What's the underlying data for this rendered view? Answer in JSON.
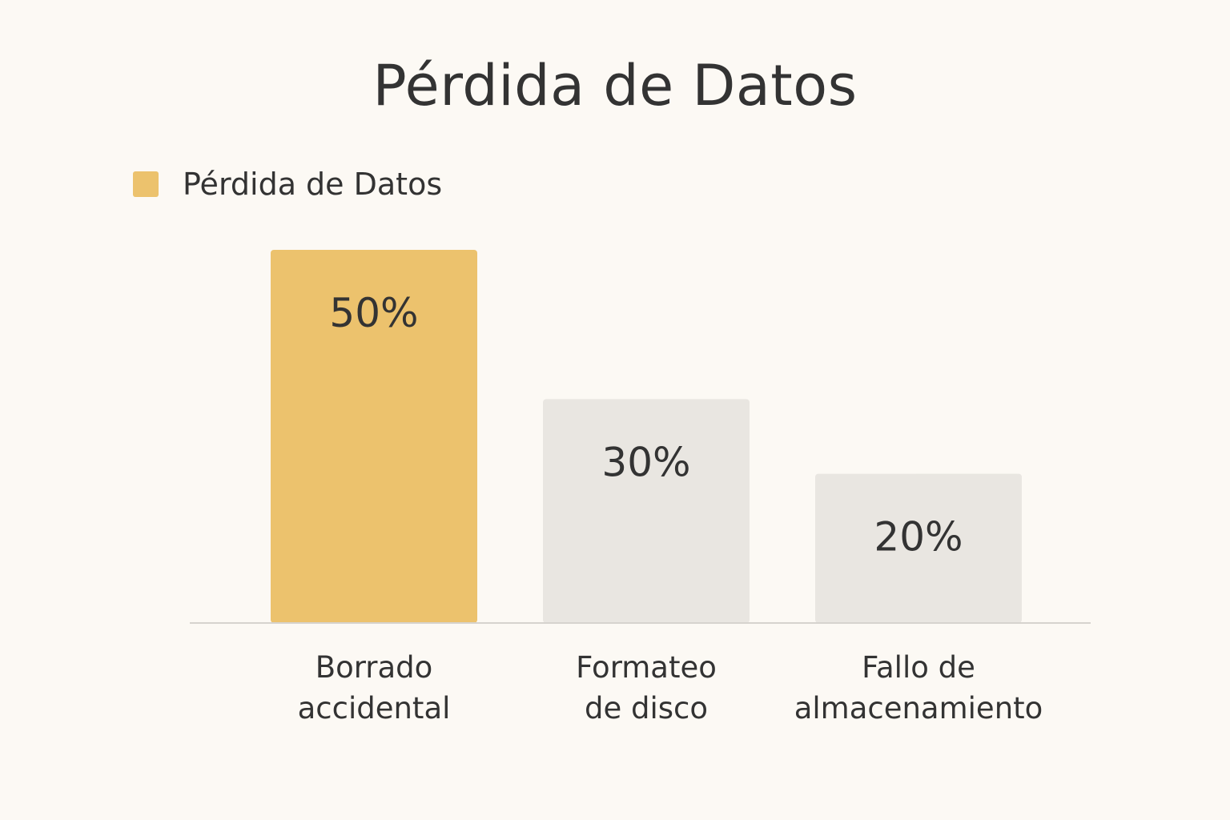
{
  "chart_data": {
    "type": "bar",
    "title": "Pérdida de Datos",
    "legend": {
      "placement": "top-left",
      "entries": [
        {
          "name": "Pérdida de Datos",
          "color": "#ecc26d"
        }
      ]
    },
    "categories": [
      [
        "Borrado",
        "accidental"
      ],
      [
        "Formateo",
        "de disco"
      ],
      [
        "Fallo de",
        "almacenamiento"
      ]
    ],
    "series": [
      {
        "name": "Pérdida de Datos",
        "values": [
          50,
          30,
          20
        ]
      }
    ],
    "value_labels": [
      "50%",
      "30%",
      "20%"
    ],
    "bar_colors": [
      "#ecc26d",
      "#e9e6e1",
      "#e9e6e1"
    ],
    "ylim": [
      0,
      50
    ],
    "grid": false,
    "xlabel": "",
    "ylabel": ""
  }
}
